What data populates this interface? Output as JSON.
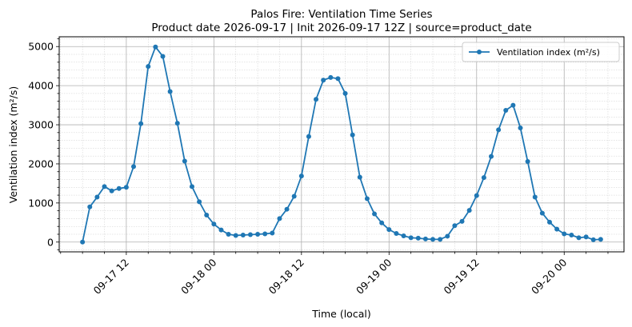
{
  "chart_data": {
    "type": "line",
    "title": "Palos Fire: Ventilation Time Series",
    "subtitle": "Product date 2026-09-17 | Init 2026-09-17 12Z | source=product_date",
    "xlabel": "Time (local)",
    "ylabel": "Ventilation index (m²/s)",
    "x_tick_labels": [
      "09-17 12",
      "09-18 00",
      "09-18 12",
      "09-19 00",
      "09-19 12",
      "09-20 00"
    ],
    "y_tick_labels": [
      "0",
      "1000",
      "2000",
      "3000",
      "4000",
      "5000"
    ],
    "ylim": [
      -250,
      5250
    ],
    "grid": true,
    "legend_position": "top-right",
    "series": [
      {
        "name": "Ventilation index (m²/s)",
        "color": "#1f77b4",
        "marker": "circle",
        "x": [
          "2026-09-17 06:00",
          "2026-09-17 07:00",
          "2026-09-17 08:00",
          "2026-09-17 09:00",
          "2026-09-17 10:00",
          "2026-09-17 11:00",
          "2026-09-17 12:00",
          "2026-09-17 13:00",
          "2026-09-17 14:00",
          "2026-09-17 15:00",
          "2026-09-17 16:00",
          "2026-09-17 17:00",
          "2026-09-17 18:00",
          "2026-09-17 19:00",
          "2026-09-17 20:00",
          "2026-09-17 21:00",
          "2026-09-17 22:00",
          "2026-09-17 23:00",
          "2026-09-18 00:00",
          "2026-09-18 01:00",
          "2026-09-18 02:00",
          "2026-09-18 03:00",
          "2026-09-18 04:00",
          "2026-09-18 05:00",
          "2026-09-18 06:00",
          "2026-09-18 07:00",
          "2026-09-18 08:00",
          "2026-09-18 09:00",
          "2026-09-18 10:00",
          "2026-09-18 11:00",
          "2026-09-18 12:00",
          "2026-09-18 13:00",
          "2026-09-18 14:00",
          "2026-09-18 15:00",
          "2026-09-18 16:00",
          "2026-09-18 17:00",
          "2026-09-18 18:00",
          "2026-09-18 19:00",
          "2026-09-18 20:00",
          "2026-09-18 21:00",
          "2026-09-18 22:00",
          "2026-09-18 23:00",
          "2026-09-19 00:00",
          "2026-09-19 01:00",
          "2026-09-19 02:00",
          "2026-09-19 03:00",
          "2026-09-19 04:00",
          "2026-09-19 05:00",
          "2026-09-19 06:00",
          "2026-09-19 07:00",
          "2026-09-19 08:00",
          "2026-09-19 09:00",
          "2026-09-19 10:00",
          "2026-09-19 11:00",
          "2026-09-19 12:00",
          "2026-09-19 13:00",
          "2026-09-19 14:00",
          "2026-09-19 15:00",
          "2026-09-19 16:00",
          "2026-09-19 17:00",
          "2026-09-19 18:00",
          "2026-09-19 19:00",
          "2026-09-19 20:00",
          "2026-09-19 21:00",
          "2026-09-19 22:00",
          "2026-09-19 23:00",
          "2026-09-20 00:00",
          "2026-09-20 01:00",
          "2026-09-20 02:00",
          "2026-09-20 03:00",
          "2026-09-20 04:00",
          "2026-09-20 05:00"
        ],
        "y": [
          0,
          900,
          1150,
          1420,
          1310,
          1370,
          1400,
          1930,
          3030,
          4490,
          4990,
          4750,
          3850,
          3040,
          2070,
          1420,
          1030,
          690,
          460,
          310,
          200,
          170,
          180,
          190,
          200,
          210,
          230,
          600,
          840,
          1170,
          1690,
          2700,
          3650,
          4140,
          4210,
          4180,
          3800,
          2740,
          1660,
          1110,
          720,
          490,
          320,
          220,
          160,
          110,
          100,
          80,
          70,
          70,
          150,
          420,
          530,
          810,
          1190,
          1650,
          2190,
          2870,
          3370,
          3500,
          2920,
          2060,
          1150,
          740,
          510,
          330,
          210,
          180,
          110,
          130,
          60,
          70
        ]
      }
    ]
  }
}
